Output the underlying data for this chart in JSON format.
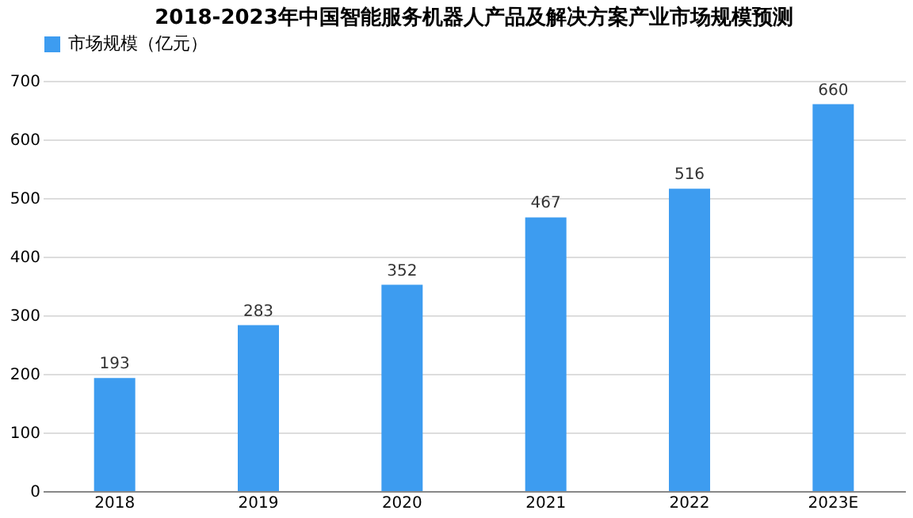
{
  "chart_data": {
    "type": "bar",
    "title": "2018-2023年中国智能服务机器人产品及解决方案产业市场规模预测",
    "categories": [
      "2018",
      "2019",
      "2020",
      "2021",
      "2022",
      "2023E"
    ],
    "series": [
      {
        "name": "市场规模（亿元）",
        "color": "#3d9cf0",
        "values": [
          193,
          283,
          352,
          467,
          516,
          660
        ]
      }
    ],
    "ylim": [
      0,
      700
    ],
    "yticks": [
      0,
      100,
      200,
      300,
      400,
      500,
      600,
      700
    ],
    "grid": "y",
    "legend": "top",
    "data_labels": true
  }
}
